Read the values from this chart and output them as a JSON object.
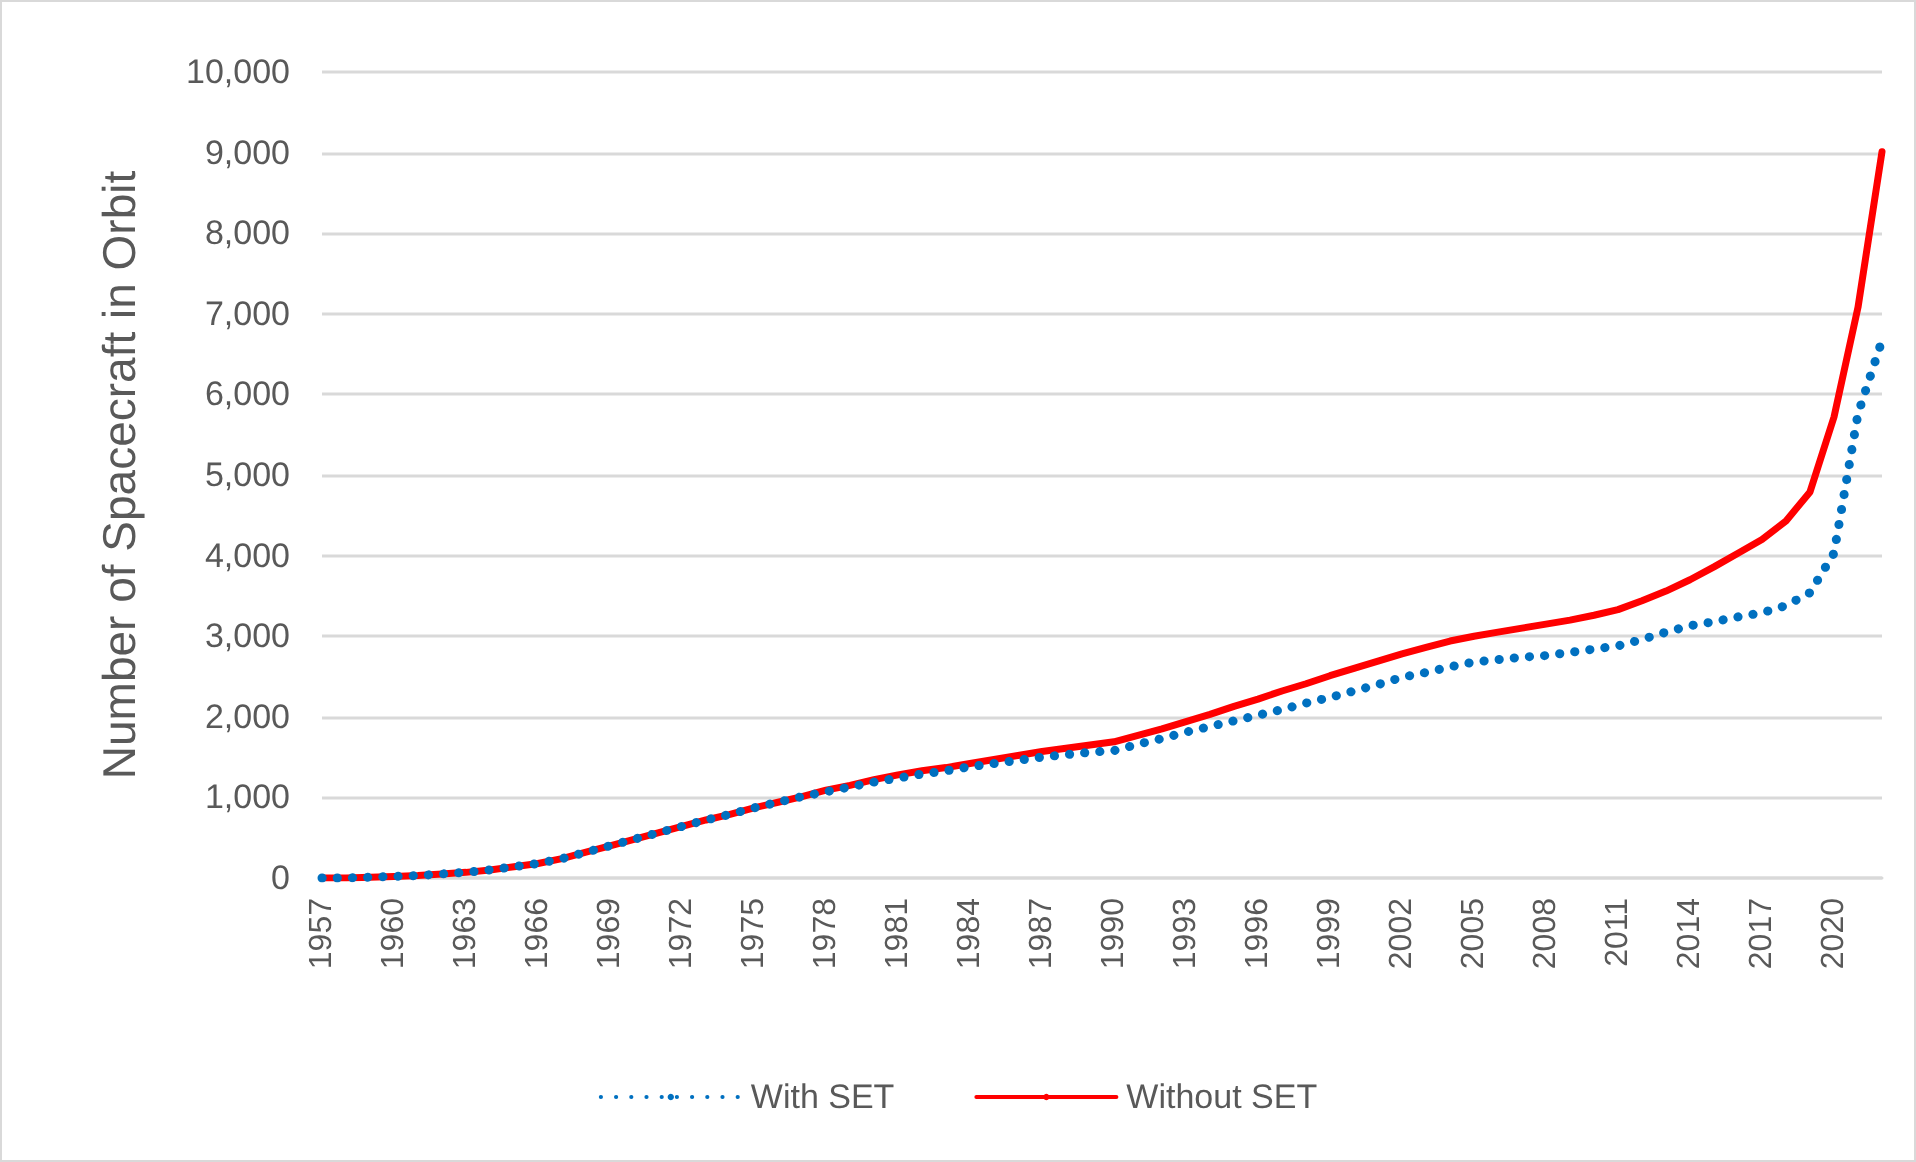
{
  "chart_data": {
    "type": "line",
    "ylabel": "Number of Spacecraft in Orbit",
    "categories": [
      "1957",
      null,
      null,
      "1960",
      null,
      null,
      "1963",
      null,
      null,
      "1966",
      null,
      null,
      "1969",
      null,
      null,
      "1972",
      null,
      null,
      "1975",
      null,
      null,
      "1978",
      null,
      null,
      "1981",
      null,
      null,
      "1984",
      null,
      null,
      "1987",
      null,
      null,
      "1990",
      null,
      null,
      "1993",
      null,
      null,
      "1996",
      null,
      null,
      "1999",
      null,
      null,
      "2002",
      null,
      null,
      "2005",
      null,
      null,
      "2008",
      null,
      null,
      "2011",
      null,
      null,
      "2014",
      null,
      null,
      "2017",
      null,
      null,
      "2020",
      null,
      null
    ],
    "series": [
      {
        "name": "With SET",
        "color": "#0070c0",
        "line_style": "dotted",
        "values": [
          0,
          0,
          10,
          20,
          30,
          50,
          70,
          100,
          140,
          180,
          240,
          320,
          400,
          480,
          560,
          640,
          720,
          790,
          870,
          940,
          1010,
          1070,
          1130,
          1190,
          1240,
          1290,
          1330,
          1380,
          1420,
          1460,
          1500,
          1530,
          1560,
          1580,
          1660,
          1730,
          1810,
          1880,
          1950,
          2020,
          2090,
          2170,
          2240,
          2320,
          2400,
          2490,
          2550,
          2620,
          2680,
          2710,
          2740,
          2760,
          2800,
          2840,
          2880,
          2960,
          3050,
          3130,
          3180,
          3240,
          3290,
          3380,
          3540,
          4030,
          5760,
          6670
        ]
      },
      {
        "name": "Without SET",
        "color": "#ff0000",
        "line_style": "solid",
        "values": [
          0,
          0,
          10,
          20,
          30,
          50,
          70,
          100,
          140,
          180,
          240,
          320,
          400,
          480,
          560,
          640,
          720,
          790,
          870,
          940,
          1010,
          1090,
          1150,
          1220,
          1280,
          1330,
          1370,
          1420,
          1470,
          1520,
          1570,
          1610,
          1650,
          1690,
          1770,
          1850,
          1940,
          2030,
          2130,
          2220,
          2320,
          2410,
          2510,
          2600,
          2690,
          2780,
          2860,
          2940,
          3000,
          3050,
          3100,
          3150,
          3200,
          3260,
          3330,
          3440,
          3560,
          3700,
          3860,
          4030,
          4200,
          4430,
          4790,
          5720,
          7080,
          9010
        ]
      }
    ],
    "ylim": [
      0,
      10000
    ],
    "yticks": [
      0,
      {
        "value": 1000,
        "label": "1,000"
      },
      {
        "value": 2000,
        "label": "2,000"
      },
      {
        "value": 3000,
        "label": "3,000"
      },
      {
        "value": 4000,
        "label": "4,000"
      },
      {
        "value": 5000,
        "label": "5,000"
      },
      {
        "value": 6000,
        "label": "6,000"
      },
      {
        "value": 7000,
        "label": "7,000"
      },
      {
        "value": 8000,
        "label": "8,000"
      },
      {
        "value": 9000,
        "label": "9,000"
      },
      {
        "value": 10000,
        "label": "10,000"
      }
    ],
    "grid": "y",
    "legend": "bottom",
    "marker": "none"
  }
}
